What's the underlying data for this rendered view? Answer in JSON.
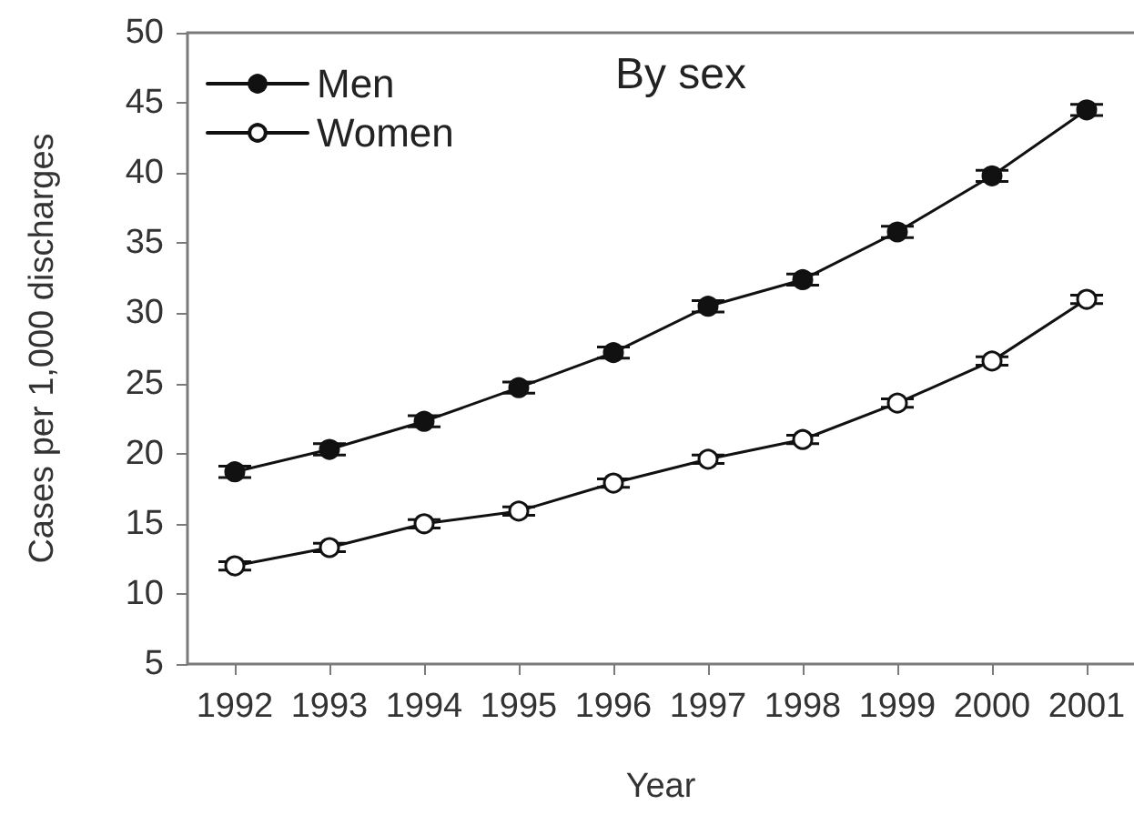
{
  "chart_data": {
    "type": "line",
    "title": "By sex",
    "xlabel": "Year",
    "ylabel": "Cases per 1,000 discharges",
    "categories": [
      "1992",
      "1993",
      "1994",
      "1995",
      "1996",
      "1997",
      "1998",
      "1999",
      "2000",
      "2001"
    ],
    "series": [
      {
        "name": "Men",
        "color": "#111111",
        "values": [
          18.7,
          20.3,
          22.3,
          24.7,
          27.2,
          30.5,
          32.4,
          35.8,
          39.8,
          44.5
        ],
        "errors": [
          0.4,
          0.4,
          0.4,
          0.4,
          0.4,
          0.4,
          0.4,
          0.4,
          0.4,
          0.4
        ]
      },
      {
        "name": "Women",
        "color": "#111111",
        "colors": [
          "#ffffff",
          "#ffffff",
          "#ffffff",
          "#ffffff",
          "#ffffff",
          "#ffffff",
          "#ffffff",
          "#ffffff",
          "#ffffff",
          "#ffffff"
        ],
        "values": [
          12.0,
          13.3,
          15.0,
          15.9,
          17.9,
          19.6,
          21.0,
          23.6,
          26.6,
          31.0
        ],
        "errors": [
          0.3,
          0.3,
          0.3,
          0.3,
          0.3,
          0.3,
          0.3,
          0.3,
          0.3,
          0.3
        ]
      }
    ],
    "ylim": [
      5,
      50
    ],
    "yticks": [
      5,
      10,
      15,
      20,
      25,
      30,
      35,
      40,
      45,
      50
    ],
    "legend": "top left",
    "marker": "circle",
    "line_style": "solid"
  }
}
